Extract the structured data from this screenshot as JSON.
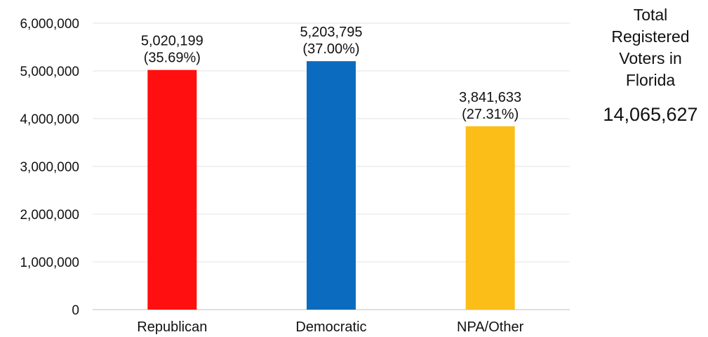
{
  "chart_data": {
    "type": "bar",
    "categories": [
      "Republican",
      "Democratic",
      "NPA/Other"
    ],
    "values": [
      5020199,
      5203795,
      3841633
    ],
    "data_labels": [
      {
        "value": "5,020,199",
        "percent": "(35.69%)"
      },
      {
        "value": "5,203,795",
        "percent": "(37.00%)"
      },
      {
        "value": "3,841,633",
        "percent": "(27.31%)"
      }
    ],
    "colors": [
      "#ff0f0f",
      "#0b6cbf",
      "#fbbd18"
    ],
    "ylim": [
      0,
      6000000
    ],
    "yticks": [
      0,
      1000000,
      2000000,
      3000000,
      4000000,
      5000000,
      6000000
    ],
    "ytick_labels": [
      "0",
      "1,000,000",
      "2,000,000",
      "3,000,000",
      "4,000,000",
      "5,000,000",
      "6,000,000"
    ],
    "grid": true,
    "title": "",
    "xlabel": "",
    "ylabel": ""
  },
  "side_panel": {
    "title": "Total Registered Voters in Florida",
    "total": "14,065,627"
  }
}
